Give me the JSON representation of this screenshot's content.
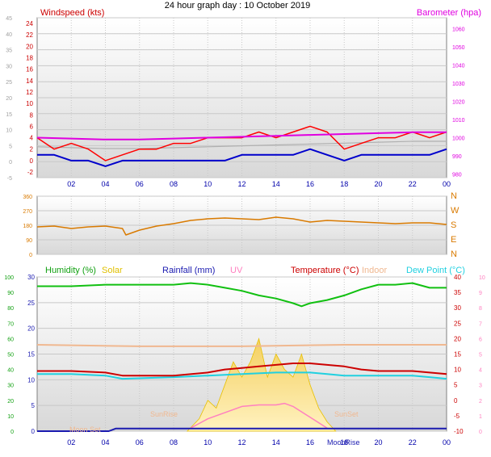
{
  "header": {
    "title": "24 hour graph day : 10 October 2019"
  },
  "x_ticks": [
    "02",
    "04",
    "06",
    "08",
    "10",
    "12",
    "14",
    "16",
    "18",
    "20",
    "22",
    "00"
  ],
  "moon": {
    "rise_label": "MoonRise",
    "set_label": "Moon Set"
  },
  "sun": {
    "rise_label": "SunRise",
    "set_label": "SunSet"
  },
  "colors": {
    "wind": "#ff0000",
    "wind_avg": "#0000cc",
    "barometer": "#e000e0",
    "baro_shadow": "#b0b0b0",
    "direction": "#d97a00",
    "humidity": "#11c011",
    "solar": "#e8c000",
    "rainfall": "#1a1ab0",
    "uv": "#ff80c0",
    "temperature": "#cc0000",
    "indoor": "#f0b890",
    "dewpoint": "#20d0e0"
  },
  "chart_data": [
    {
      "type": "line",
      "title": "24 hour graph day : 10 October 2019",
      "legend": [
        {
          "label": "Windspeed (kts)",
          "color": "#cc0000",
          "position": "top-left"
        },
        {
          "label": "Barometer (hpa)",
          "color": "#e000e0",
          "position": "top-right"
        }
      ],
      "y_left": {
        "ticks": [
          "-5",
          "0",
          "5",
          "10",
          "15",
          "20",
          "25",
          "30",
          "35",
          "40",
          "45"
        ],
        "range": [
          -5,
          45
        ]
      },
      "y_right": {
        "ticks": [
          "980",
          "990",
          "1000",
          "1010",
          "1020",
          "1030",
          "1040",
          "1050",
          "1060"
        ],
        "range": [
          978,
          1066
        ]
      },
      "y_inner": {
        "ticks": [
          "-2",
          "0",
          "2",
          "4",
          "6",
          "8",
          "10",
          "12",
          "14",
          "16",
          "18",
          "20",
          "22",
          "24"
        ],
        "range": [
          -2,
          25
        ]
      },
      "x_hours": [
        0,
        24
      ],
      "series": [
        {
          "name": "Windspeed (kts)",
          "color": "#ff0000",
          "x": [
            0,
            1,
            2,
            3,
            4,
            5,
            6,
            7,
            8,
            9,
            10,
            11,
            12,
            13,
            14,
            15,
            16,
            17,
            18,
            19,
            20,
            21,
            22,
            23,
            24
          ],
          "values": [
            4,
            2,
            3,
            2,
            0,
            1,
            2,
            2,
            3,
            3,
            4,
            4,
            4,
            5,
            4,
            5,
            6,
            5,
            2,
            3,
            4,
            4,
            5,
            4,
            5
          ]
        },
        {
          "name": "Wind average",
          "color": "#0000cc",
          "x": [
            0,
            1,
            2,
            3,
            4,
            5,
            6,
            7,
            8,
            9,
            10,
            11,
            12,
            13,
            14,
            15,
            16,
            17,
            18,
            19,
            20,
            21,
            22,
            23,
            24
          ],
          "values": [
            1,
            1,
            0,
            0,
            -1,
            0,
            0,
            0,
            0,
            0,
            0,
            0,
            1,
            1,
            1,
            1,
            2,
            1,
            0,
            1,
            1,
            1,
            1,
            1,
            2
          ]
        },
        {
          "name": "Barometer (hpa)",
          "color": "#e000e0",
          "x": [
            0,
            2,
            4,
            6,
            8,
            10,
            12,
            14,
            16,
            18,
            20,
            22,
            24
          ],
          "values": [
            1000,
            999.5,
            999,
            999,
            999.5,
            1000,
            1000.5,
            1001,
            1001.5,
            1002,
            1002.5,
            1003,
            1003
          ]
        }
      ]
    },
    {
      "type": "line",
      "y_left": {
        "ticks": [
          "0",
          "90",
          "180",
          "270",
          "360"
        ],
        "range": [
          0,
          360
        ]
      },
      "y_right": {
        "ticks": [
          "N",
          "E",
          "S",
          "W",
          "N"
        ]
      },
      "series": [
        {
          "name": "Wind direction",
          "color": "#d97a00",
          "x": [
            0,
            1,
            2,
            3,
            4,
            5,
            5.2,
            6,
            7,
            8,
            9,
            10,
            11,
            12,
            13,
            14,
            15,
            16,
            17,
            18,
            19,
            20,
            21,
            22,
            23,
            24
          ],
          "values": [
            170,
            175,
            160,
            170,
            175,
            160,
            120,
            150,
            175,
            190,
            210,
            220,
            225,
            220,
            215,
            230,
            220,
            200,
            210,
            205,
            200,
            195,
            190,
            195,
            195,
            185
          ]
        }
      ]
    },
    {
      "type": "line",
      "legend": [
        {
          "label": "Humidity (%)",
          "color": "#11a011"
        },
        {
          "label": "Solar",
          "color": "#e0c000"
        },
        {
          "label": "Rainfall (mm)",
          "color": "#1a1ab0"
        },
        {
          "label": "UV",
          "color": "#ff80c0"
        },
        {
          "label": "Temperature (°C)",
          "color": "#cc0000"
        },
        {
          "label": "Indoor",
          "color": "#f0b890"
        },
        {
          "label": "Dew Point (°C)",
          "color": "#20d0e0"
        }
      ],
      "y_humidity": {
        "ticks": [
          "0",
          "10",
          "20",
          "30",
          "40",
          "50",
          "60",
          "70",
          "80",
          "90",
          "100"
        ],
        "range": [
          0,
          100
        ]
      },
      "y_rain": {
        "ticks": [
          "0",
          "5",
          "10",
          "15",
          "20",
          "25",
          "30"
        ],
        "range": [
          0,
          30
        ]
      },
      "y_temp": {
        "ticks": [
          "-10",
          "-5",
          "0",
          "5",
          "10",
          "15",
          "20",
          "25",
          "30",
          "35",
          "40"
        ],
        "range": [
          -10,
          40
        ]
      },
      "y_uv": {
        "ticks": [
          "0",
          "1",
          "2",
          "3",
          "4",
          "5",
          "6",
          "7",
          "8",
          "9",
          "10"
        ],
        "range": [
          0,
          10
        ]
      },
      "series": [
        {
          "name": "Humidity (%)",
          "color": "#11c011",
          "x": [
            0,
            2,
            4,
            6,
            8,
            9,
            10,
            11,
            12,
            13,
            14,
            15,
            15.5,
            16,
            17,
            18,
            19,
            20,
            21,
            22,
            23,
            24
          ],
          "values": [
            94,
            94,
            95,
            95,
            95,
            96,
            95,
            93,
            91,
            88,
            86,
            83,
            81,
            83,
            85,
            88,
            92,
            95,
            95,
            96,
            93,
            93
          ]
        },
        {
          "name": "Indoor",
          "color": "#f0b890",
          "x": [
            0,
            6,
            12,
            18,
            24
          ],
          "values": [
            18,
            17.5,
            17.5,
            18,
            18
          ]
        },
        {
          "name": "Temperature (°C)",
          "color": "#cc0000",
          "x": [
            0,
            2,
            4,
            5,
            8,
            10,
            11,
            12,
            13,
            14,
            15,
            16,
            17,
            18,
            19,
            20,
            21,
            22,
            23,
            24
          ],
          "values": [
            9.5,
            9.5,
            9,
            8,
            8,
            9,
            10,
            10.5,
            11,
            11.5,
            12,
            12,
            11.5,
            11,
            10,
            9.5,
            9.5,
            9.5,
            9,
            8.5
          ]
        },
        {
          "name": "Dew Point (°C)",
          "color": "#20d0e0",
          "x": [
            0,
            2,
            4,
            5,
            8,
            10,
            12,
            14,
            15,
            16,
            17,
            18,
            19,
            20,
            21,
            22,
            23,
            24
          ],
          "values": [
            8.5,
            8.5,
            8,
            7,
            7.5,
            8,
            8.5,
            9,
            9,
            9,
            8.5,
            8,
            8,
            8,
            8,
            8,
            7.5,
            7
          ]
        },
        {
          "name": "Rainfall (mm)",
          "color": "#1a1ab0",
          "x": [
            0,
            4.2,
            4.6,
            24
          ],
          "values": [
            0,
            0,
            0.5,
            0.5
          ]
        },
        {
          "name": "Solar",
          "color": "#e8c000",
          "x": [
            8.8,
            9.5,
            10,
            10.5,
            11,
            11.5,
            12,
            12.5,
            13,
            13.5,
            14,
            14.5,
            15,
            15.5,
            16,
            16.5,
            17,
            17.5
          ],
          "values": [
            0,
            0.8,
            2,
            1.5,
            3,
            4.5,
            3.5,
            4.5,
            6,
            3.5,
            5,
            4,
            3.5,
            5,
            3,
            1.5,
            0.6,
            0
          ]
        },
        {
          "name": "UV",
          "color": "#ff80c0",
          "x": [
            9,
            10,
            11,
            12,
            13,
            14,
            14.5,
            15,
            16,
            17
          ],
          "values": [
            0.2,
            0.8,
            1.2,
            1.6,
            1.7,
            1.7,
            1.8,
            1.6,
            0.9,
            0.2
          ]
        }
      ]
    }
  ]
}
